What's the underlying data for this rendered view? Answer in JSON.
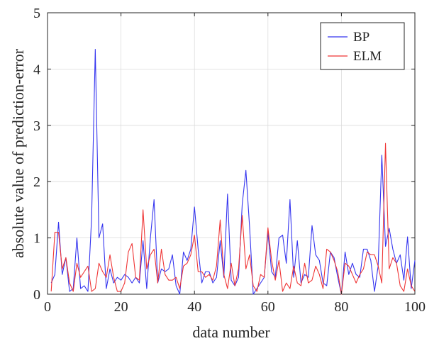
{
  "chart_data": {
    "type": "line",
    "xlabel": "data number",
    "ylabel": "absolute value of prediction-error",
    "xlim": [
      0,
      100
    ],
    "ylim": [
      0,
      5
    ],
    "xticks": [
      0,
      20,
      40,
      60,
      80,
      100
    ],
    "yticks": [
      0,
      1,
      2,
      3,
      4,
      5
    ],
    "grid": true,
    "legend_position": "top-right",
    "x": [
      1,
      2,
      3,
      4,
      5,
      6,
      7,
      8,
      9,
      10,
      11,
      12,
      13,
      14,
      15,
      16,
      17,
      18,
      19,
      20,
      21,
      22,
      23,
      24,
      25,
      26,
      27,
      28,
      29,
      30,
      31,
      32,
      33,
      34,
      35,
      36,
      37,
      38,
      39,
      40,
      41,
      42,
      43,
      44,
      45,
      46,
      47,
      48,
      49,
      50,
      51,
      52,
      53,
      54,
      55,
      56,
      57,
      58,
      59,
      60,
      61,
      62,
      63,
      64,
      65,
      66,
      67,
      68,
      69,
      70,
      71,
      72,
      73,
      74,
      75,
      76,
      77,
      78,
      79,
      80,
      81,
      82,
      83,
      84,
      85,
      86,
      87,
      88,
      89,
      90,
      91,
      92,
      93,
      94,
      95,
      96,
      97,
      98,
      99,
      100
    ],
    "series": [
      {
        "name": "BP",
        "color": "#3535ef",
        "values": [
          0.2,
          0.35,
          1.28,
          0.35,
          0.65,
          0.05,
          0.1,
          1.0,
          0.1,
          0.15,
          0.05,
          1.35,
          4.35,
          1.0,
          1.25,
          0.1,
          0.45,
          0.2,
          0.3,
          0.25,
          0.35,
          0.3,
          0.2,
          0.3,
          0.2,
          0.95,
          0.1,
          1.0,
          1.68,
          0.2,
          0.45,
          0.4,
          0.45,
          0.7,
          0.15,
          0.0,
          0.75,
          0.6,
          0.8,
          1.55,
          0.8,
          0.2,
          0.4,
          0.4,
          0.2,
          0.3,
          0.95,
          0.3,
          1.78,
          0.25,
          0.15,
          0.3,
          1.6,
          2.2,
          1.2,
          0.0,
          0.1,
          0.2,
          0.3,
          1.1,
          0.4,
          0.3,
          1.0,
          1.05,
          0.55,
          1.68,
          0.3,
          0.95,
          0.2,
          0.35,
          0.3,
          1.22,
          0.7,
          0.6,
          0.2,
          0.15,
          0.75,
          0.65,
          0.3,
          0.0,
          0.75,
          0.35,
          0.55,
          0.35,
          0.3,
          0.8,
          0.8,
          0.6,
          0.05,
          0.5,
          2.47,
          0.85,
          1.17,
          0.8,
          0.55,
          0.7,
          0.25,
          1.02,
          0.1,
          0.6
        ]
      },
      {
        "name": "ELM",
        "color": "#ef3535",
        "values": [
          0.05,
          1.1,
          1.1,
          0.45,
          0.65,
          0.2,
          0.05,
          0.55,
          0.3,
          0.4,
          0.5,
          0.05,
          0.1,
          0.55,
          0.4,
          0.3,
          0.7,
          0.3,
          0.05,
          0.05,
          0.2,
          0.75,
          0.9,
          0.3,
          0.25,
          1.5,
          0.45,
          0.7,
          0.8,
          0.2,
          0.8,
          0.35,
          0.25,
          0.25,
          0.3,
          0.1,
          0.5,
          0.55,
          0.7,
          1.05,
          0.4,
          0.4,
          0.3,
          0.35,
          0.25,
          0.5,
          1.32,
          0.35,
          0.1,
          0.55,
          0.15,
          0.45,
          1.4,
          0.45,
          0.7,
          0.15,
          0.05,
          0.35,
          0.3,
          1.18,
          0.6,
          0.25,
          0.6,
          0.05,
          0.2,
          0.1,
          0.5,
          0.2,
          0.15,
          0.55,
          0.2,
          0.25,
          0.5,
          0.35,
          0.1,
          0.8,
          0.75,
          0.6,
          0.4,
          0.0,
          0.55,
          0.5,
          0.35,
          0.2,
          0.35,
          0.45,
          0.75,
          0.7,
          0.7,
          0.5,
          0.2,
          2.68,
          0.45,
          0.65,
          0.55,
          0.15,
          0.05,
          0.45,
          0.15,
          0.05
        ]
      }
    ]
  }
}
